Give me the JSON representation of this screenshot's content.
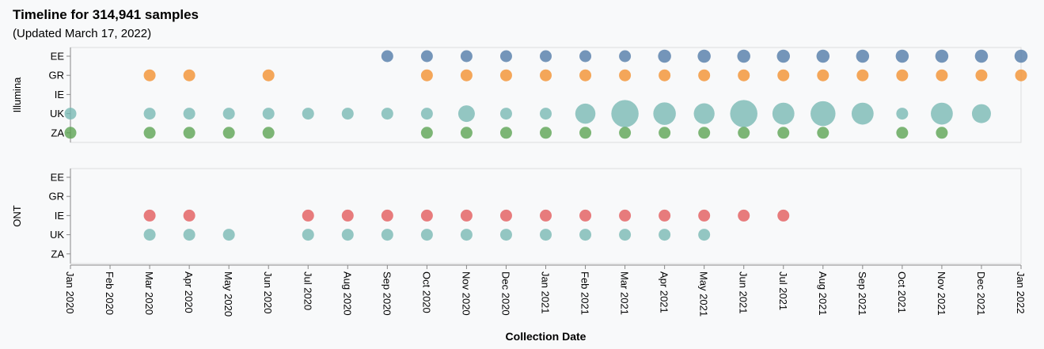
{
  "header": {
    "title": "Timeline for 314,941 samples",
    "subtitle": "(Updated March 17, 2022)"
  },
  "chart_data": {
    "type": "scatter",
    "xlabel": "Collection Date",
    "x_ticks": [
      "Jan 2020",
      "Feb 2020",
      "Mar 2020",
      "Apr 2020",
      "May 2020",
      "Jun 2020",
      "Jul 2020",
      "Aug 2020",
      "Sep 2020",
      "Oct 2020",
      "Nov 2020",
      "Dec 2020",
      "Jan 2021",
      "Feb 2021",
      "Mar 2021",
      "Apr 2021",
      "May 2021",
      "Jun 2021",
      "Jul 2021",
      "Aug 2021",
      "Sep 2021",
      "Oct 2021",
      "Nov 2021",
      "Dec 2021",
      "Jan 2022"
    ],
    "y_categories": [
      "EE",
      "GR",
      "IE",
      "UK",
      "ZA"
    ],
    "colors": {
      "EE": "#4e79a7",
      "GR": "#f28e2b",
      "IE": "#e15759",
      "UK": "#76b7b2",
      "ZA": "#59a14f"
    },
    "facets": [
      {
        "name": "Illumina",
        "series": [
          {
            "name": "EE",
            "points": [
              {
                "x": "Sep 2020",
                "r": 1
              },
              {
                "x": "Oct 2020",
                "r": 1
              },
              {
                "x": "Nov 2020",
                "r": 1
              },
              {
                "x": "Dec 2020",
                "r": 1
              },
              {
                "x": "Jan 2021",
                "r": 1
              },
              {
                "x": "Feb 2021",
                "r": 1
              },
              {
                "x": "Mar 2021",
                "r": 1
              },
              {
                "x": "Apr 2021",
                "r": 1.1
              },
              {
                "x": "May 2021",
                "r": 1.1
              },
              {
                "x": "Jun 2021",
                "r": 1.1
              },
              {
                "x": "Jul 2021",
                "r": 1.1
              },
              {
                "x": "Aug 2021",
                "r": 1.1
              },
              {
                "x": "Sep 2021",
                "r": 1.1
              },
              {
                "x": "Oct 2021",
                "r": 1.1
              },
              {
                "x": "Nov 2021",
                "r": 1.1
              },
              {
                "x": "Dec 2021",
                "r": 1.1
              },
              {
                "x": "Jan 2022",
                "r": 1.1
              }
            ]
          },
          {
            "name": "GR",
            "points": [
              {
                "x": "Mar 2020",
                "r": 1
              },
              {
                "x": "Apr 2020",
                "r": 1
              },
              {
                "x": "Jun 2020",
                "r": 1
              },
              {
                "x": "Oct 2020",
                "r": 1
              },
              {
                "x": "Nov 2020",
                "r": 1
              },
              {
                "x": "Dec 2020",
                "r": 1
              },
              {
                "x": "Jan 2021",
                "r": 1
              },
              {
                "x": "Feb 2021",
                "r": 1
              },
              {
                "x": "Mar 2021",
                "r": 1
              },
              {
                "x": "Apr 2021",
                "r": 1
              },
              {
                "x": "May 2021",
                "r": 1
              },
              {
                "x": "Jun 2021",
                "r": 1
              },
              {
                "x": "Jul 2021",
                "r": 1
              },
              {
                "x": "Aug 2021",
                "r": 1
              },
              {
                "x": "Sep 2021",
                "r": 1
              },
              {
                "x": "Oct 2021",
                "r": 1
              },
              {
                "x": "Nov 2021",
                "r": 1
              },
              {
                "x": "Dec 2021",
                "r": 1
              },
              {
                "x": "Jan 2022",
                "r": 1
              }
            ]
          },
          {
            "name": "IE",
            "points": []
          },
          {
            "name": "UK",
            "points": [
              {
                "x": "Jan 2020",
                "r": 1
              },
              {
                "x": "Mar 2020",
                "r": 1
              },
              {
                "x": "Apr 2020",
                "r": 1
              },
              {
                "x": "May 2020",
                "r": 1
              },
              {
                "x": "Jun 2020",
                "r": 1
              },
              {
                "x": "Jul 2020",
                "r": 1
              },
              {
                "x": "Aug 2020",
                "r": 1
              },
              {
                "x": "Sep 2020",
                "r": 1
              },
              {
                "x": "Oct 2020",
                "r": 1
              },
              {
                "x": "Nov 2020",
                "r": 1.4
              },
              {
                "x": "Dec 2020",
                "r": 1
              },
              {
                "x": "Jan 2021",
                "r": 1
              },
              {
                "x": "Feb 2021",
                "r": 1.7
              },
              {
                "x": "Mar 2021",
                "r": 2.3
              },
              {
                "x": "Apr 2021",
                "r": 1.9
              },
              {
                "x": "May 2021",
                "r": 1.75
              },
              {
                "x": "Jun 2021",
                "r": 2.3
              },
              {
                "x": "Jul 2021",
                "r": 1.85
              },
              {
                "x": "Aug 2021",
                "r": 2.1
              },
              {
                "x": "Sep 2021",
                "r": 1.85
              },
              {
                "x": "Oct 2021",
                "r": 1
              },
              {
                "x": "Nov 2021",
                "r": 1.85
              },
              {
                "x": "Dec 2021",
                "r": 1.6
              }
            ]
          },
          {
            "name": "ZA",
            "points": [
              {
                "x": "Jan 2020",
                "r": 1
              },
              {
                "x": "Mar 2020",
                "r": 1
              },
              {
                "x": "Apr 2020",
                "r": 1
              },
              {
                "x": "May 2020",
                "r": 1
              },
              {
                "x": "Jun 2020",
                "r": 1
              },
              {
                "x": "Oct 2020",
                "r": 1
              },
              {
                "x": "Nov 2020",
                "r": 1
              },
              {
                "x": "Dec 2020",
                "r": 1
              },
              {
                "x": "Jan 2021",
                "r": 1
              },
              {
                "x": "Feb 2021",
                "r": 1
              },
              {
                "x": "Mar 2021",
                "r": 1
              },
              {
                "x": "Apr 2021",
                "r": 1
              },
              {
                "x": "May 2021",
                "r": 1
              },
              {
                "x": "Jun 2021",
                "r": 1
              },
              {
                "x": "Jul 2021",
                "r": 1
              },
              {
                "x": "Aug 2021",
                "r": 1
              },
              {
                "x": "Oct 2021",
                "r": 1
              },
              {
                "x": "Nov 2021",
                "r": 1
              }
            ]
          }
        ]
      },
      {
        "name": "ONT",
        "series": [
          {
            "name": "EE",
            "points": []
          },
          {
            "name": "GR",
            "points": []
          },
          {
            "name": "IE",
            "points": [
              {
                "x": "Mar 2020",
                "r": 1
              },
              {
                "x": "Apr 2020",
                "r": 1
              },
              {
                "x": "Jul 2020",
                "r": 1
              },
              {
                "x": "Aug 2020",
                "r": 1
              },
              {
                "x": "Sep 2020",
                "r": 1
              },
              {
                "x": "Oct 2020",
                "r": 1
              },
              {
                "x": "Nov 2020",
                "r": 1
              },
              {
                "x": "Dec 2020",
                "r": 1
              },
              {
                "x": "Jan 2021",
                "r": 1
              },
              {
                "x": "Feb 2021",
                "r": 1
              },
              {
                "x": "Mar 2021",
                "r": 1
              },
              {
                "x": "Apr 2021",
                "r": 1
              },
              {
                "x": "May 2021",
                "r": 1
              },
              {
                "x": "Jun 2021",
                "r": 1
              },
              {
                "x": "Jul 2021",
                "r": 1
              }
            ]
          },
          {
            "name": "UK",
            "points": [
              {
                "x": "Mar 2020",
                "r": 1
              },
              {
                "x": "Apr 2020",
                "r": 1
              },
              {
                "x": "May 2020",
                "r": 1
              },
              {
                "x": "Jul 2020",
                "r": 1
              },
              {
                "x": "Aug 2020",
                "r": 1
              },
              {
                "x": "Sep 2020",
                "r": 1
              },
              {
                "x": "Oct 2020",
                "r": 1
              },
              {
                "x": "Nov 2020",
                "r": 1
              },
              {
                "x": "Dec 2020",
                "r": 1
              },
              {
                "x": "Jan 2021",
                "r": 1
              },
              {
                "x": "Feb 2021",
                "r": 1
              },
              {
                "x": "Mar 2021",
                "r": 1
              },
              {
                "x": "Apr 2021",
                "r": 1
              },
              {
                "x": "May 2021",
                "r": 1
              }
            ]
          },
          {
            "name": "ZA",
            "points": []
          }
        ]
      }
    ]
  }
}
